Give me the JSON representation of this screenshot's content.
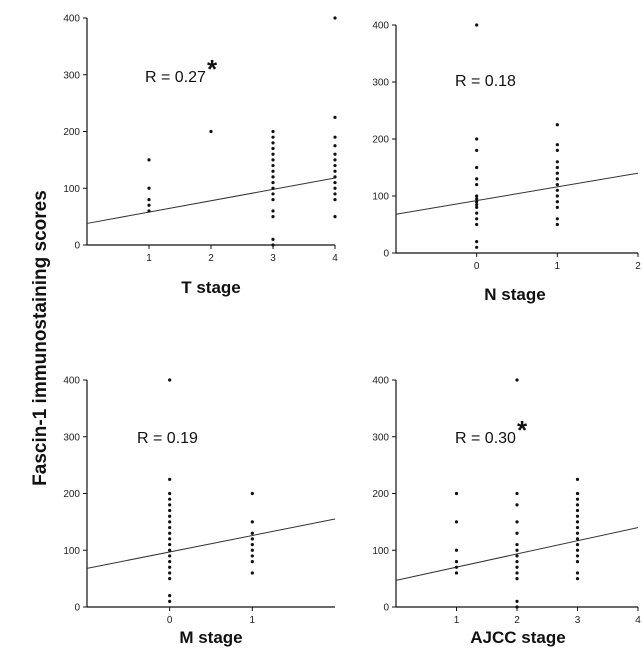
{
  "ylabel": "Fascin-1 immunostaining scores",
  "chart_data": [
    {
      "type": "scatter",
      "xlabel": "T stage",
      "annotation": "R = 0.27",
      "significant": true,
      "significance_marker": "*",
      "xlim": [
        0,
        4
      ],
      "ylim": [
        0,
        400
      ],
      "xticks": [
        1,
        2,
        3,
        4
      ],
      "yticks": [
        0,
        100,
        200,
        300,
        400
      ],
      "trendline": {
        "x": [
          0,
          4
        ],
        "y": [
          38,
          118
        ]
      },
      "points": [
        {
          "x": 1,
          "y": 150
        },
        {
          "x": 1,
          "y": 100
        },
        {
          "x": 1,
          "y": 80
        },
        {
          "x": 1,
          "y": 70
        },
        {
          "x": 1,
          "y": 60
        },
        {
          "x": 2,
          "y": 200
        },
        {
          "x": 3,
          "y": 200
        },
        {
          "x": 3,
          "y": 190
        },
        {
          "x": 3,
          "y": 180
        },
        {
          "x": 3,
          "y": 170
        },
        {
          "x": 3,
          "y": 160
        },
        {
          "x": 3,
          "y": 150
        },
        {
          "x": 3,
          "y": 140
        },
        {
          "x": 3,
          "y": 130
        },
        {
          "x": 3,
          "y": 120
        },
        {
          "x": 3,
          "y": 110
        },
        {
          "x": 3,
          "y": 100
        },
        {
          "x": 3,
          "y": 90
        },
        {
          "x": 3,
          "y": 80
        },
        {
          "x": 3,
          "y": 60
        },
        {
          "x": 3,
          "y": 50
        },
        {
          "x": 3,
          "y": 10
        },
        {
          "x": 3,
          "y": 0
        },
        {
          "x": 4,
          "y": 400
        },
        {
          "x": 4,
          "y": 225
        },
        {
          "x": 4,
          "y": 190
        },
        {
          "x": 4,
          "y": 175
        },
        {
          "x": 4,
          "y": 160
        },
        {
          "x": 4,
          "y": 150
        },
        {
          "x": 4,
          "y": 140
        },
        {
          "x": 4,
          "y": 130
        },
        {
          "x": 4,
          "y": 120
        },
        {
          "x": 4,
          "y": 110
        },
        {
          "x": 4,
          "y": 100
        },
        {
          "x": 4,
          "y": 90
        },
        {
          "x": 4,
          "y": 80
        },
        {
          "x": 4,
          "y": 50
        }
      ]
    },
    {
      "type": "scatter",
      "xlabel": "N stage",
      "annotation": "R = 0.18",
      "significant": false,
      "significance_marker": "",
      "xlim": [
        -1,
        2
      ],
      "ylim": [
        0,
        400
      ],
      "xticks": [
        0,
        1,
        2
      ],
      "yticks": [
        0,
        100,
        200,
        300,
        400
      ],
      "trendline": {
        "x": [
          -1,
          2
        ],
        "y": [
          68,
          140
        ]
      },
      "points": [
        {
          "x": 0,
          "y": 400
        },
        {
          "x": 0,
          "y": 200
        },
        {
          "x": 0,
          "y": 180
        },
        {
          "x": 0,
          "y": 150
        },
        {
          "x": 0,
          "y": 130
        },
        {
          "x": 0,
          "y": 120
        },
        {
          "x": 0,
          "y": 100
        },
        {
          "x": 0,
          "y": 95
        },
        {
          "x": 0,
          "y": 90
        },
        {
          "x": 0,
          "y": 85
        },
        {
          "x": 0,
          "y": 80
        },
        {
          "x": 0,
          "y": 70
        },
        {
          "x": 0,
          "y": 60
        },
        {
          "x": 0,
          "y": 50
        },
        {
          "x": 0,
          "y": 20
        },
        {
          "x": 0,
          "y": 10
        },
        {
          "x": 1,
          "y": 225
        },
        {
          "x": 1,
          "y": 190
        },
        {
          "x": 1,
          "y": 180
        },
        {
          "x": 1,
          "y": 160
        },
        {
          "x": 1,
          "y": 150
        },
        {
          "x": 1,
          "y": 140
        },
        {
          "x": 1,
          "y": 130
        },
        {
          "x": 1,
          "y": 120
        },
        {
          "x": 1,
          "y": 110
        },
        {
          "x": 1,
          "y": 100
        },
        {
          "x": 1,
          "y": 90
        },
        {
          "x": 1,
          "y": 80
        },
        {
          "x": 1,
          "y": 60
        },
        {
          "x": 1,
          "y": 50
        }
      ]
    },
    {
      "type": "scatter",
      "xlabel": "M stage",
      "annotation": "R = 0.19",
      "significant": false,
      "significance_marker": "",
      "xlim": [
        -1,
        2
      ],
      "ylim": [
        0,
        400
      ],
      "xticks": [
        0,
        1
      ],
      "yticks": [
        0,
        100,
        200,
        300,
        400
      ],
      "trendline": {
        "x": [
          -1,
          2
        ],
        "y": [
          68,
          155
        ]
      },
      "points": [
        {
          "x": 0,
          "y": 400
        },
        {
          "x": 0,
          "y": 225
        },
        {
          "x": 0,
          "y": 200
        },
        {
          "x": 0,
          "y": 190
        },
        {
          "x": 0,
          "y": 180
        },
        {
          "x": 0,
          "y": 170
        },
        {
          "x": 0,
          "y": 160
        },
        {
          "x": 0,
          "y": 150
        },
        {
          "x": 0,
          "y": 140
        },
        {
          "x": 0,
          "y": 130
        },
        {
          "x": 0,
          "y": 120
        },
        {
          "x": 0,
          "y": 110
        },
        {
          "x": 0,
          "y": 100
        },
        {
          "x": 0,
          "y": 90
        },
        {
          "x": 0,
          "y": 80
        },
        {
          "x": 0,
          "y": 70
        },
        {
          "x": 0,
          "y": 60
        },
        {
          "x": 0,
          "y": 50
        },
        {
          "x": 0,
          "y": 20
        },
        {
          "x": 0,
          "y": 10
        },
        {
          "x": 1,
          "y": 200
        },
        {
          "x": 1,
          "y": 150
        },
        {
          "x": 1,
          "y": 130
        },
        {
          "x": 1,
          "y": 120
        },
        {
          "x": 1,
          "y": 110
        },
        {
          "x": 1,
          "y": 100
        },
        {
          "x": 1,
          "y": 90
        },
        {
          "x": 1,
          "y": 80
        },
        {
          "x": 1,
          "y": 60
        }
      ]
    },
    {
      "type": "scatter",
      "xlabel": "AJCC stage",
      "annotation": "R = 0.30",
      "significant": true,
      "significance_marker": "*",
      "xlim": [
        0,
        4
      ],
      "ylim": [
        0,
        400
      ],
      "xticks": [
        1,
        2,
        3,
        4
      ],
      "yticks": [
        0,
        100,
        200,
        300,
        400
      ],
      "trendline": {
        "x": [
          0,
          4
        ],
        "y": [
          47,
          140
        ]
      },
      "points": [
        {
          "x": 1,
          "y": 200
        },
        {
          "x": 1,
          "y": 150
        },
        {
          "x": 1,
          "y": 100
        },
        {
          "x": 1,
          "y": 80
        },
        {
          "x": 1,
          "y": 70
        },
        {
          "x": 1,
          "y": 60
        },
        {
          "x": 2,
          "y": 400
        },
        {
          "x": 2,
          "y": 200
        },
        {
          "x": 2,
          "y": 180
        },
        {
          "x": 2,
          "y": 150
        },
        {
          "x": 2,
          "y": 130
        },
        {
          "x": 2,
          "y": 110
        },
        {
          "x": 2,
          "y": 100
        },
        {
          "x": 2,
          "y": 90
        },
        {
          "x": 2,
          "y": 80
        },
        {
          "x": 2,
          "y": 70
        },
        {
          "x": 2,
          "y": 60
        },
        {
          "x": 2,
          "y": 50
        },
        {
          "x": 2,
          "y": 10
        },
        {
          "x": 2,
          "y": 0
        },
        {
          "x": 3,
          "y": 225
        },
        {
          "x": 3,
          "y": 200
        },
        {
          "x": 3,
          "y": 190
        },
        {
          "x": 3,
          "y": 180
        },
        {
          "x": 3,
          "y": 170
        },
        {
          "x": 3,
          "y": 160
        },
        {
          "x": 3,
          "y": 150
        },
        {
          "x": 3,
          "y": 140
        },
        {
          "x": 3,
          "y": 130
        },
        {
          "x": 3,
          "y": 120
        },
        {
          "x": 3,
          "y": 110
        },
        {
          "x": 3,
          "y": 100
        },
        {
          "x": 3,
          "y": 90
        },
        {
          "x": 3,
          "y": 80
        },
        {
          "x": 3,
          "y": 60
        },
        {
          "x": 3,
          "y": 50
        }
      ]
    }
  ]
}
